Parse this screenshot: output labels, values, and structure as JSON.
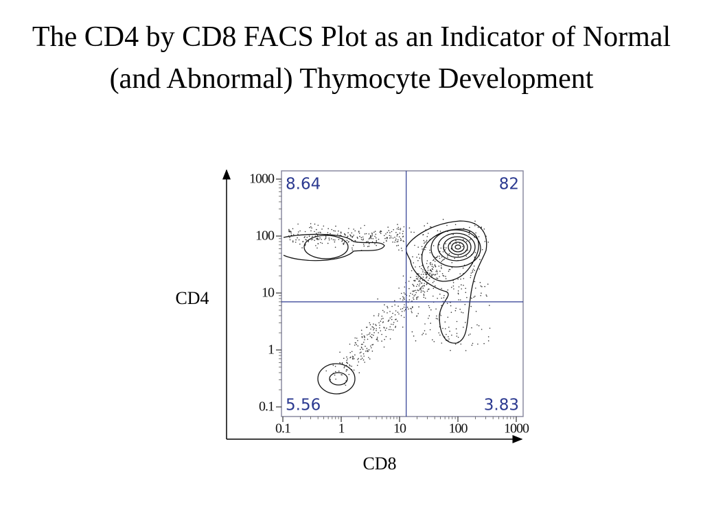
{
  "chart_data": {
    "type": "contour",
    "title": "The CD4 by CD8 FACS Plot as an Indicator of Normal (and Abnormal) Thymocyte Development",
    "x_label": "CD8",
    "y_label": "CD4",
    "log_x": true,
    "log_y": true,
    "xlim": [
      0.1,
      1000
    ],
    "ylim": [
      0.1,
      1000
    ],
    "xticks": [
      0.1,
      1,
      10,
      100,
      1000
    ],
    "yticks": [
      0.1,
      1,
      10,
      100,
      1000
    ],
    "gates": {
      "x": 13,
      "y": 7,
      "color": "#2b3990"
    },
    "quadrants": [
      {
        "position": "upper-left",
        "value": 8.64
      },
      {
        "position": "upper-right",
        "value": 82
      },
      {
        "position": "lower-left",
        "value": 5.56
      },
      {
        "position": "lower-right",
        "value": 3.83
      }
    ]
  }
}
